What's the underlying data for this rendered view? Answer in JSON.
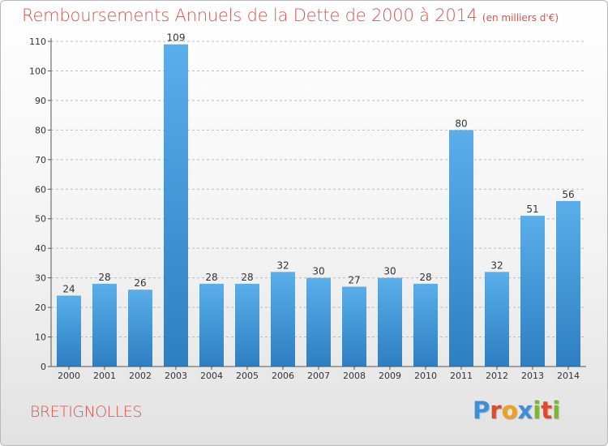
{
  "header": {
    "title": "Remboursements Annuels de la Dette de 2000 à 2014",
    "units": "(en milliers d'€)"
  },
  "footer": {
    "place": "BRETIGNOLLES",
    "brand_letters": [
      {
        "ch": "P",
        "color": "#3d8fd6"
      },
      {
        "ch": "r",
        "color": "#e04a2a"
      },
      {
        "ch": "o",
        "color": "#f0a020"
      },
      {
        "ch": "x",
        "color": "#3d8fd6"
      },
      {
        "ch": "i",
        "color": "#7cb82f"
      },
      {
        "ch": "t",
        "color": "#e04a2a"
      },
      {
        "ch": "i",
        "color": "#7cb82f"
      }
    ]
  },
  "colors": {
    "title": "#d8534a",
    "bar_top": "#5aaeea",
    "bar_bottom": "#2d7fc1",
    "grid": "#bcbcbc",
    "axis": "#555555"
  },
  "chart_data": {
    "type": "bar",
    "title": "Remboursements Annuels de la Dette de 2000 à 2014",
    "xlabel": "",
    "ylabel": "en milliers d'€",
    "categories": [
      "2000",
      "2001",
      "2002",
      "2003",
      "2004",
      "2005",
      "2006",
      "2007",
      "2008",
      "2009",
      "2010",
      "2011",
      "2012",
      "2013",
      "2014"
    ],
    "values": [
      24,
      28,
      26,
      109,
      28,
      28,
      32,
      30,
      27,
      30,
      28,
      80,
      32,
      51,
      56
    ],
    "ylim": [
      0,
      110
    ],
    "yticks": [
      0,
      10,
      20,
      30,
      40,
      50,
      60,
      70,
      80,
      90,
      100,
      110
    ],
    "grid": true
  }
}
